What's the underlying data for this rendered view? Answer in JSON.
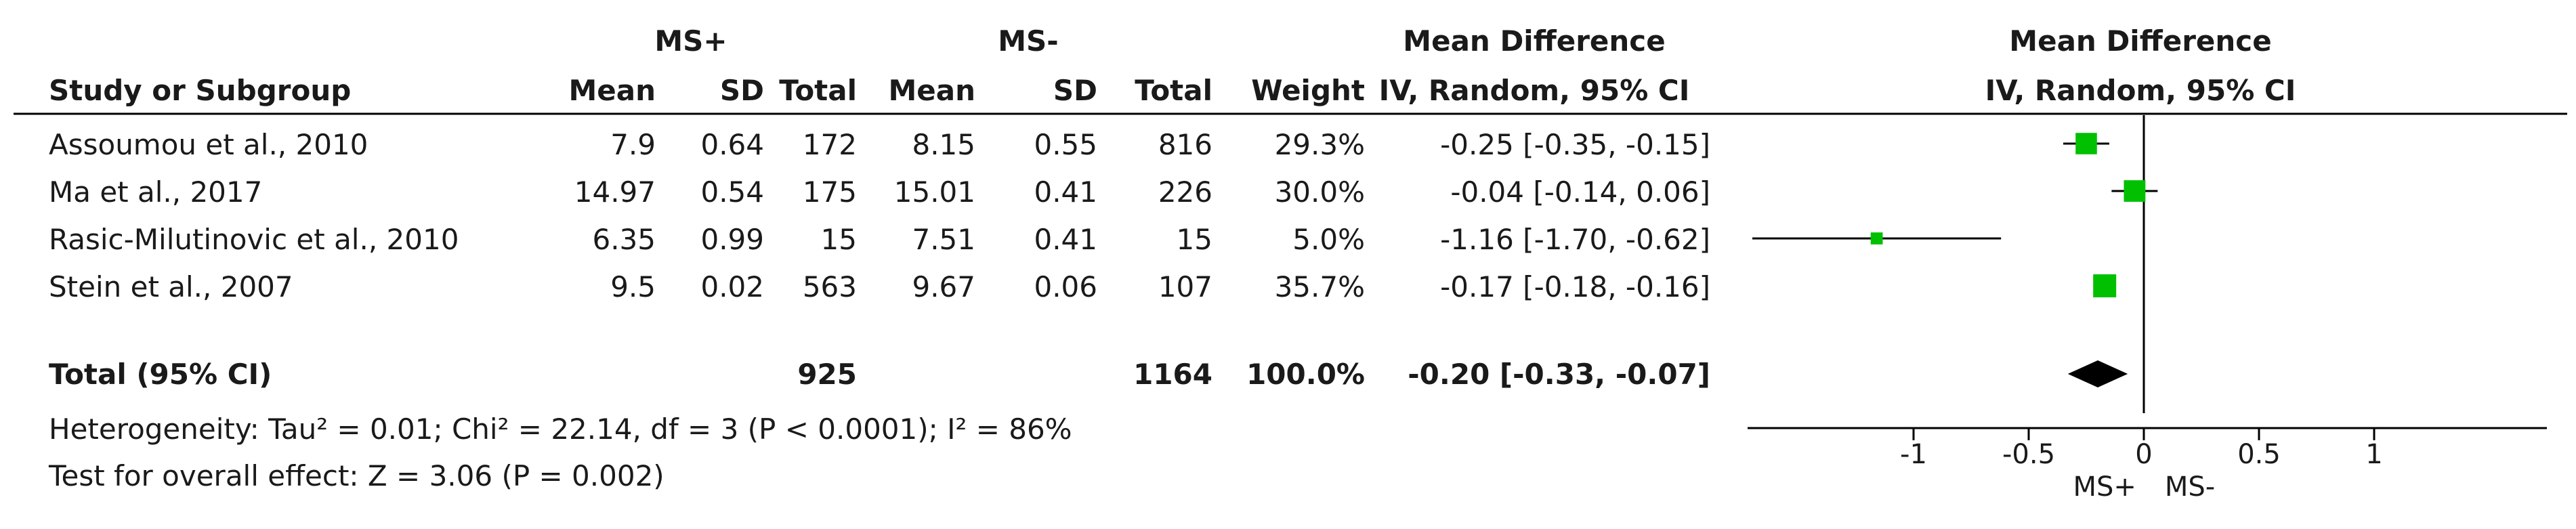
{
  "headers": {
    "group1": "MS+",
    "group2": "MS-",
    "md_title": "Mean Difference",
    "md_method": "IV, Random, 95% CI",
    "study": "Study or Subgroup",
    "mean": "Mean",
    "sd": "SD",
    "total": "Total",
    "weight": "Weight",
    "plot_title": "Mean Difference",
    "plot_method": "IV, Random, 95% CI"
  },
  "studies": [
    {
      "name": "Assoumou et al., 2010",
      "mean1": "7.9",
      "sd1": "0.64",
      "n1": "172",
      "mean2": "8.15",
      "sd2": "0.55",
      "n2": "816",
      "weight": "29.3%",
      "ci_text": "-0.25 [-0.35, -0.15]"
    },
    {
      "name": "Ma et al., 2017",
      "mean1": "14.97",
      "sd1": "0.54",
      "n1": "175",
      "mean2": "15.01",
      "sd2": "0.41",
      "n2": "226",
      "weight": "30.0%",
      "ci_text": "-0.04 [-0.14, 0.06]"
    },
    {
      "name": "Rasic-Milutinovic et al., 2010",
      "mean1": "6.35",
      "sd1": "0.99",
      "n1": "15",
      "mean2": "7.51",
      "sd2": "0.41",
      "n2": "15",
      "weight": "5.0%",
      "ci_text": "-1.16 [-1.70, -0.62]"
    },
    {
      "name": "Stein et al., 2007",
      "mean1": "9.5",
      "sd1": "0.02",
      "n1": "563",
      "mean2": "9.67",
      "sd2": "0.06",
      "n2": "107",
      "weight": "35.7%",
      "ci_text": "-0.17 [-0.18, -0.16]"
    }
  ],
  "total": {
    "label": "Total (95% CI)",
    "n1": "925",
    "n2": "1164",
    "weight": "100.0%",
    "ci_text": "-0.20 [-0.33, -0.07]"
  },
  "heterogeneity": "Heterogeneity: Tau² = 0.01; Chi² = 22.14, df = 3 (P < 0.0001); I² = 86%",
  "overall_effect": "Test for overall effect: Z = 3.06 (P = 0.002)",
  "axis": {
    "left_label": "MS+",
    "right_label": "MS-"
  },
  "colors": {
    "box": "#00c000",
    "diamond": "#000000",
    "line": "#000000"
  },
  "chart_data": {
    "type": "forest",
    "x_scale": "linear",
    "xlim": [
      -2.0,
      1.0
    ],
    "xticks": [
      -1,
      -0.5,
      0,
      0.5,
      1
    ],
    "xtick_labels": [
      "-1",
      "-0.5",
      "0",
      "0.5",
      "1"
    ],
    "reference_line": 0,
    "series": [
      {
        "name": "Assoumou et al., 2010",
        "estimate": -0.25,
        "ci_low": -0.35,
        "ci_high": -0.15,
        "weight": 29.3
      },
      {
        "name": "Ma et al., 2017",
        "estimate": -0.04,
        "ci_low": -0.14,
        "ci_high": 0.06,
        "weight": 30.0
      },
      {
        "name": "Rasic-Milutinovic et al., 2010",
        "estimate": -1.16,
        "ci_low": -1.7,
        "ci_high": -0.62,
        "weight": 5.0
      },
      {
        "name": "Stein et al., 2007",
        "estimate": -0.17,
        "ci_low": -0.18,
        "ci_high": -0.16,
        "weight": 35.7
      }
    ],
    "pooled": {
      "name": "Total (95% CI)",
      "estimate": -0.2,
      "ci_low": -0.33,
      "ci_high": -0.07
    }
  }
}
